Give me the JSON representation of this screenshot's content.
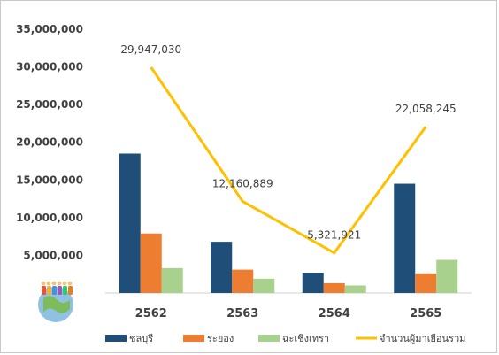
{
  "chart_data": {
    "type": "bar",
    "categories": [
      "2562",
      "2563",
      "2564",
      "2565"
    ],
    "series": [
      {
        "name": "ชลบุรี",
        "kind": "bar",
        "color": "#1f4e79",
        "values": [
          18500000,
          6800000,
          2700000,
          14500000
        ]
      },
      {
        "name": "ระยอง",
        "kind": "bar",
        "color": "#ed7d31",
        "values": [
          7900000,
          3100000,
          1300000,
          2600000
        ]
      },
      {
        "name": "ฉะเชิงเทรา",
        "kind": "bar",
        "color": "#a9d18e",
        "values": [
          3300000,
          1900000,
          1000000,
          4400000
        ]
      },
      {
        "name": "จำนวนผู้มาเยือนรวม",
        "kind": "line",
        "color": "#ffc000",
        "values": [
          29947030,
          12160889,
          5321921,
          22058245
        ]
      }
    ],
    "data_labels": [
      "29,947,030",
      "12,160,889",
      "5,321,921",
      "22,058,245"
    ],
    "y_ticks": [
      "35,000,000",
      "30,000,000",
      "25,000,000",
      "20,000,000",
      "15,000,000",
      "10,000,000",
      "5,000,000"
    ],
    "ylim": [
      0,
      35000000
    ],
    "grid": false,
    "legend_position": "bottom",
    "title": "",
    "xlabel": "",
    "ylabel": ""
  },
  "icons": {
    "people-globe-icon": "decorative icon of people standing on a globe"
  }
}
